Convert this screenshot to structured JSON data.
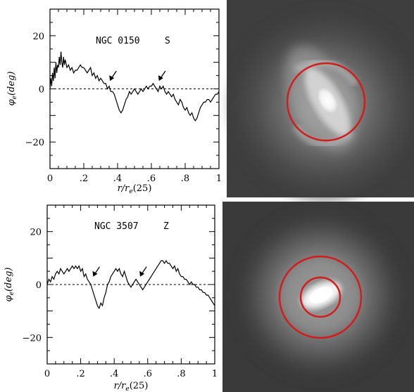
{
  "chart_data": [
    {
      "type": "line",
      "label": "NGC 0150",
      "class": "S",
      "xlabel": "r/r_e(25)",
      "ylabel": "φ_e(deg)",
      "xlim": [
        0,
        1
      ],
      "ylim": [
        -30,
        30
      ],
      "xticks": [
        0,
        0.2,
        0.4,
        0.6,
        0.8,
        1
      ],
      "xtick_labels": [
        "0",
        ".2",
        ".4",
        ".6",
        ".8",
        "1"
      ],
      "yticks": [
        -20,
        0,
        20
      ],
      "ytick_labels": [
        "−20",
        "0",
        "20"
      ],
      "reference_line": {
        "y": 0,
        "style": "dashed"
      },
      "arrows": [
        {
          "x": 0.355,
          "y": 3
        },
        {
          "x": 0.645,
          "y": 3
        }
      ],
      "series": [
        {
          "x": [
            0.0,
            0.005,
            0.01,
            0.015,
            0.02,
            0.025,
            0.03,
            0.035,
            0.04,
            0.045,
            0.05,
            0.055,
            0.06,
            0.065,
            0.07,
            0.075,
            0.08,
            0.085,
            0.09,
            0.1,
            0.11,
            0.12,
            0.13,
            0.14,
            0.15,
            0.16,
            0.17,
            0.18,
            0.19,
            0.2,
            0.21,
            0.22,
            0.23,
            0.24,
            0.25,
            0.26,
            0.27,
            0.28,
            0.29,
            0.3,
            0.31,
            0.32,
            0.33,
            0.34,
            0.35,
            0.36,
            0.37,
            0.38,
            0.39,
            0.4,
            0.41,
            0.42,
            0.43,
            0.44,
            0.45,
            0.46,
            0.47,
            0.48,
            0.49,
            0.5,
            0.51,
            0.52,
            0.53,
            0.54,
            0.55,
            0.56,
            0.57,
            0.58,
            0.59,
            0.6,
            0.61,
            0.62,
            0.63,
            0.64,
            0.65,
            0.66,
            0.67,
            0.68,
            0.69,
            0.7,
            0.71,
            0.72,
            0.73,
            0.74,
            0.75,
            0.76,
            0.77,
            0.78,
            0.79,
            0.8,
            0.81,
            0.82,
            0.83,
            0.84,
            0.85,
            0.86,
            0.87,
            0.88,
            0.89,
            0.9,
            0.91,
            0.92,
            0.93,
            0.94,
            0.95,
            0.96,
            0.97,
            0.98,
            0.99,
            1.0
          ],
          "y": [
            0,
            4,
            1,
            6,
            3,
            8,
            4,
            10,
            6,
            9,
            8,
            12,
            9,
            14,
            10,
            8,
            12,
            9,
            11,
            8,
            9,
            7,
            8,
            6,
            7,
            7,
            8,
            9,
            8,
            8,
            7,
            6,
            7,
            8,
            5,
            6,
            4,
            5,
            3,
            4,
            3,
            2,
            2,
            0,
            1,
            -1,
            -1,
            -2,
            -4,
            -6,
            -8,
            -9,
            -8,
            -6,
            -4,
            -3,
            -1,
            -2,
            -1,
            0,
            -1,
            -2,
            -1,
            0,
            -1,
            0,
            1,
            0,
            1,
            1,
            2,
            1,
            0,
            -1,
            1,
            0,
            1,
            -1,
            -2,
            -1,
            -2,
            -3,
            -2,
            -4,
            -5,
            -6,
            -4,
            -5,
            -7,
            -8,
            -7,
            -9,
            -10,
            -9,
            -11,
            -12,
            -11,
            -9,
            -7,
            -6,
            -5,
            -5,
            -4,
            -4,
            -5,
            -4,
            -3,
            -2,
            -2,
            -1
          ]
        }
      ]
    },
    {
      "type": "line",
      "label": "NGC 3507",
      "class": "Z",
      "xlabel": "r/r_e(25)",
      "ylabel": "φ_e(deg)",
      "xlim": [
        0,
        1
      ],
      "ylim": [
        -30,
        30
      ],
      "xticks": [
        0,
        0.2,
        0.4,
        0.6,
        0.8,
        1
      ],
      "xtick_labels": [
        "0",
        ".2",
        ".4",
        ".6",
        ".8",
        "1"
      ],
      "yticks": [
        -20,
        0,
        20
      ],
      "ytick_labels": [
        "−20",
        "0",
        "20"
      ],
      "reference_line": {
        "y": 0,
        "style": "dashed"
      },
      "arrows": [
        {
          "x": 0.275,
          "y": 3
        },
        {
          "x": 0.555,
          "y": 3
        }
      ],
      "series": [
        {
          "x": [
            0.0,
            0.01,
            0.02,
            0.03,
            0.04,
            0.05,
            0.06,
            0.07,
            0.08,
            0.09,
            0.1,
            0.11,
            0.12,
            0.13,
            0.14,
            0.15,
            0.16,
            0.17,
            0.18,
            0.19,
            0.2,
            0.21,
            0.22,
            0.23,
            0.24,
            0.25,
            0.26,
            0.27,
            0.28,
            0.29,
            0.3,
            0.31,
            0.32,
            0.33,
            0.34,
            0.35,
            0.36,
            0.37,
            0.38,
            0.39,
            0.4,
            0.41,
            0.42,
            0.43,
            0.44,
            0.45,
            0.46,
            0.47,
            0.48,
            0.49,
            0.5,
            0.51,
            0.52,
            0.53,
            0.54,
            0.55,
            0.56,
            0.57,
            0.58,
            0.59,
            0.6,
            0.61,
            0.62,
            0.63,
            0.64,
            0.65,
            0.66,
            0.67,
            0.68,
            0.69,
            0.7,
            0.71,
            0.72,
            0.73,
            0.74,
            0.75,
            0.76,
            0.77,
            0.78,
            0.79,
            0.8,
            0.81,
            0.82,
            0.83,
            0.84,
            0.85,
            0.86,
            0.87,
            0.88,
            0.89,
            0.9,
            0.91,
            0.92,
            0.93,
            0.94,
            0.95,
            0.96,
            0.97,
            0.98,
            0.99,
            1.0
          ],
          "y": [
            0,
            2,
            1,
            3,
            2,
            4,
            5,
            4,
            6,
            5,
            4,
            5,
            6,
            5,
            6,
            7,
            6,
            7,
            6,
            7,
            5,
            6,
            3,
            4,
            2,
            1,
            0,
            -2,
            -4,
            -6,
            -8,
            -9,
            -7,
            -8,
            -5,
            -3,
            0,
            1,
            3,
            4,
            5,
            6,
            5,
            6,
            4,
            3,
            5,
            3,
            1,
            0,
            -1,
            0,
            1,
            2,
            1,
            0,
            -1,
            -2,
            -1,
            0,
            1,
            2,
            3,
            4,
            5,
            6,
            7,
            8,
            9,
            9,
            8,
            9,
            8,
            8,
            7,
            6,
            7,
            5,
            6,
            4,
            3,
            3,
            2,
            2,
            1,
            0,
            1,
            0,
            0,
            -1,
            -1,
            -2,
            -2,
            -3,
            -3,
            -4,
            -4,
            -5,
            -6,
            -7,
            -8
          ]
        }
      ]
    }
  ],
  "panel_labels": [
    {
      "galaxy": "NGC 0150",
      "class": "S"
    },
    {
      "galaxy": "NGC 3507",
      "class": "Z"
    }
  ],
  "galaxy_images": [
    {
      "name": "NGC 0150",
      "overlay_rings": 1,
      "ring_color": "#d41c1c"
    },
    {
      "name": "NGC 3507",
      "overlay_rings": 2,
      "ring_color": "#d41c1c"
    }
  ],
  "colors": {
    "line": "#000000",
    "ring": "#d41c1c",
    "image_bg": "#3c3c3c"
  }
}
